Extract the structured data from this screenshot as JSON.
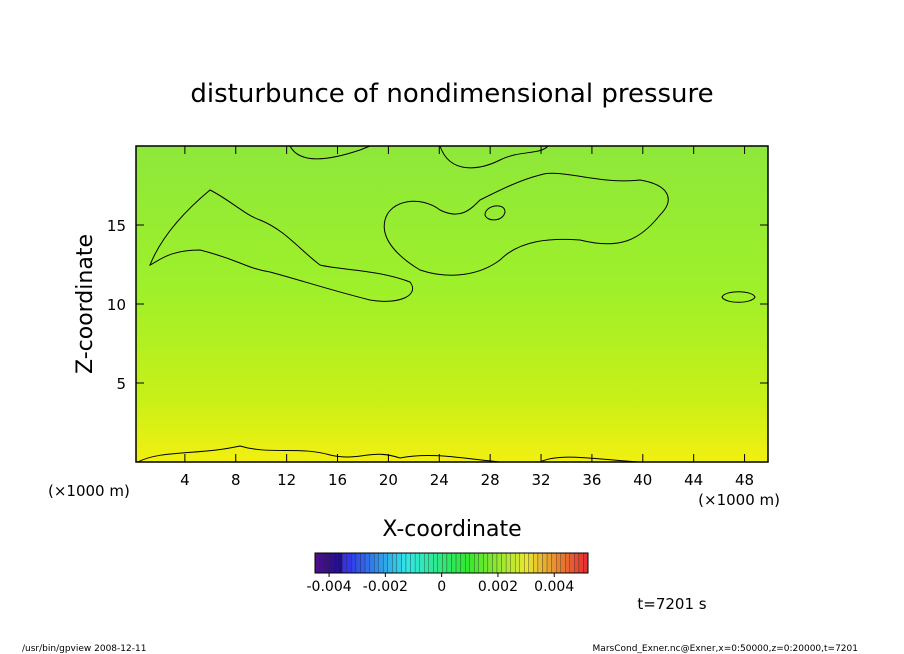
{
  "chart_data": {
    "type": "contour",
    "title": "disturbunce of nondimensional pressure",
    "x_label": "X-coordinate",
    "y_label": "Z-coordinate",
    "x_unit_left": "(×1000 m)",
    "x_unit_right": "(×1000 m)",
    "xlim": [
      0,
      50
    ],
    "xticks": [
      4,
      8,
      12,
      16,
      20,
      24,
      28,
      32,
      36,
      40,
      44,
      48
    ],
    "ylim": [
      0,
      20
    ],
    "yticks": [
      5,
      10,
      15
    ],
    "colorbar": {
      "lim": [
        -0.0045,
        0.0052
      ],
      "ticks": [
        -0.004,
        -0.002,
        0,
        0.002,
        0.004
      ]
    },
    "time_label": "t=7201 s",
    "footer_left": "/usr/bin/gpview   2008-12-11",
    "footer_right": "MarsCond_Exner.nc@Exner,x=0:50000,z=0:20000,t=7201"
  }
}
